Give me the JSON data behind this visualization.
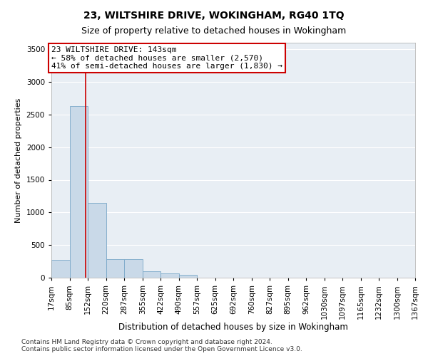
{
  "title": "23, WILTSHIRE DRIVE, WOKINGHAM, RG40 1TQ",
  "subtitle": "Size of property relative to detached houses in Wokingham",
  "xlabel": "Distribution of detached houses by size in Wokingham",
  "ylabel": "Number of detached properties",
  "bar_color": "#c9d9e8",
  "bar_edge_color": "#7aa8c8",
  "plot_bg_color": "#e8eef4",
  "fig_bg_color": "#ffffff",
  "grid_color": "#ffffff",
  "annotation_text": "23 WILTSHIRE DRIVE: 143sqm\n← 58% of detached houses are smaller (2,570)\n41% of semi-detached houses are larger (1,830) →",
  "annotation_box_facecolor": "#ffffff",
  "annotation_box_edgecolor": "#cc0000",
  "property_line_color": "#cc0000",
  "property_size": 143,
  "bin_edges": [
    17,
    85,
    152,
    220,
    287,
    355,
    422,
    490,
    557,
    625,
    692,
    760,
    827,
    895,
    962,
    1030,
    1097,
    1165,
    1232,
    1300,
    1367
  ],
  "bin_counts": [
    270,
    2630,
    1150,
    280,
    280,
    100,
    65,
    40,
    0,
    0,
    0,
    0,
    0,
    0,
    0,
    0,
    0,
    0,
    0,
    0
  ],
  "ylim": [
    0,
    3600
  ],
  "yticks": [
    0,
    500,
    1000,
    1500,
    2000,
    2500,
    3000,
    3500
  ],
  "footer_text": "Contains HM Land Registry data © Crown copyright and database right 2024.\nContains public sector information licensed under the Open Government Licence v3.0.",
  "title_fontsize": 10,
  "subtitle_fontsize": 9,
  "xlabel_fontsize": 8.5,
  "ylabel_fontsize": 8,
  "tick_fontsize": 7.5,
  "footer_fontsize": 6.5,
  "annotation_fontsize": 8
}
